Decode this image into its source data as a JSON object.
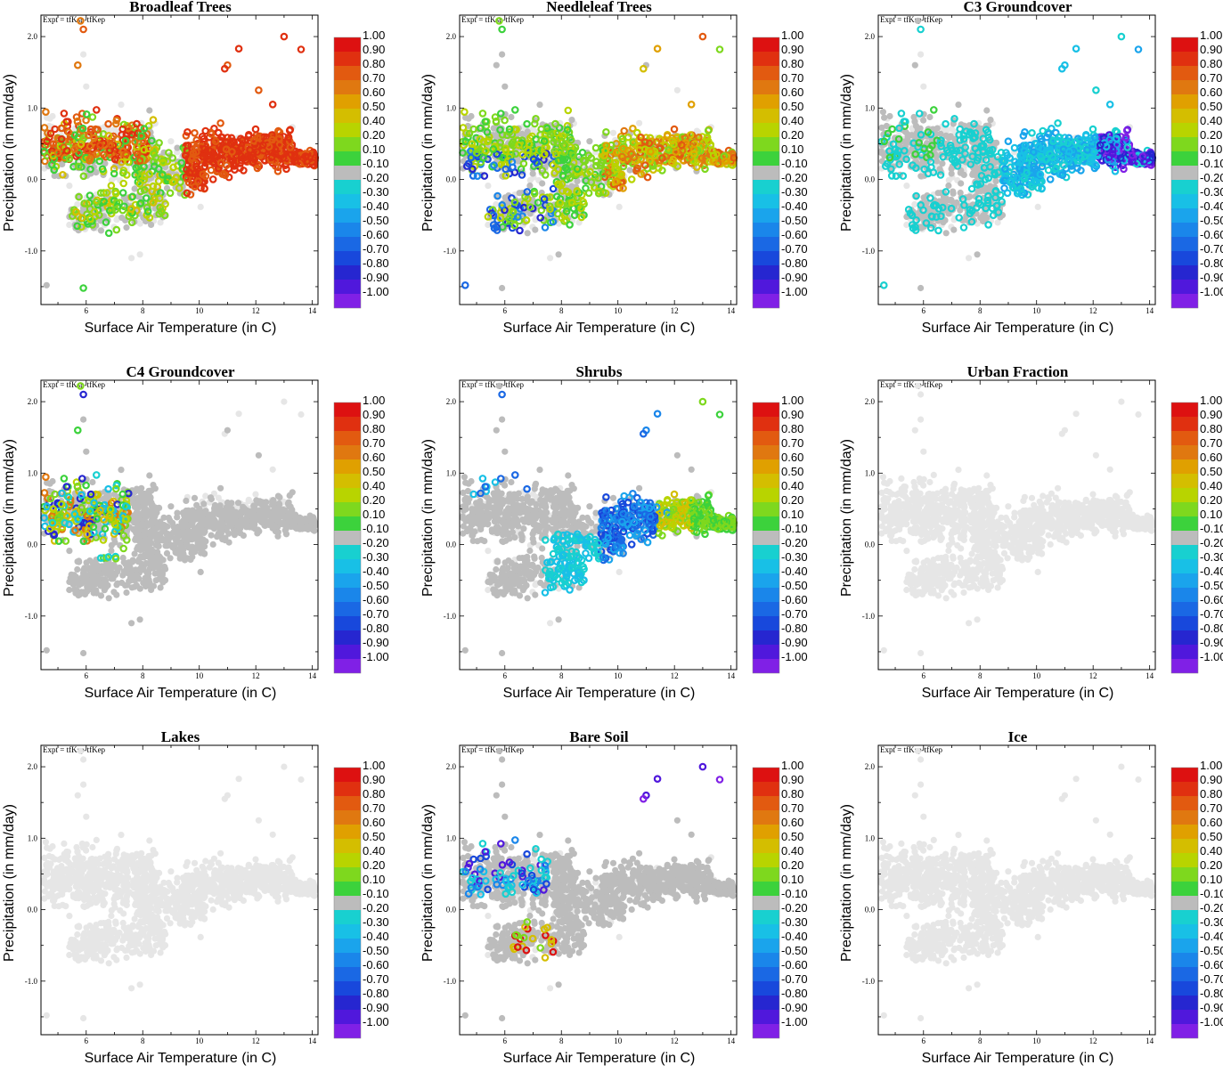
{
  "figure": {
    "expt_label": "Expt = tfKsp-tfKep",
    "colorbar": {
      "labels": [
        "1.00",
        "0.90",
        "0.80",
        "0.70",
        "0.60",
        "0.50",
        "0.40",
        "0.20",
        "0.10",
        "-0.10",
        "-0.20",
        "-0.30",
        "-0.40",
        "-0.50",
        "-0.60",
        "-0.70",
        "-0.80",
        "-0.90",
        "-1.00"
      ],
      "colors": [
        "#dd1111",
        "#e03010",
        "#e25a10",
        "#e07810",
        "#e0a000",
        "#d4be00",
        "#b8d400",
        "#7ed81e",
        "#3cd23c",
        "#bcbcbc",
        "#18d0d0",
        "#18c0e6",
        "#1aa4ec",
        "#1a86ea",
        "#1a68e4",
        "#1848dc",
        "#2626d0",
        "#5018dc",
        "#8020e6"
      ]
    }
  },
  "chart_data": [
    {
      "type": "scatter",
      "title": "Broadleaf Trees",
      "panel_state": "broadleaf",
      "xlabel": "Surface Air Temperature (in C)",
      "ylabel": "Precipitation (in mm/day)",
      "xlim": [
        4.4,
        14.2
      ],
      "ylim": [
        -1.75,
        2.3
      ],
      "xticks": [
        "6",
        "8",
        "10",
        "12",
        "14"
      ],
      "yticks": [
        "-1.0",
        "0.0",
        "1.0",
        "2.0"
      ]
    },
    {
      "type": "scatter",
      "title": "Needleleaf Trees",
      "panel_state": "needleleaf",
      "xlabel": "Surface Air Temperature (in C)",
      "ylabel": "Precipitation (in mm/day)",
      "xlim": [
        4.4,
        14.2
      ],
      "ylim": [
        -1.75,
        2.3
      ],
      "xticks": [
        "6",
        "8",
        "10",
        "12",
        "14"
      ],
      "yticks": [
        "-1.0",
        "0.0",
        "1.0",
        "2.0"
      ]
    },
    {
      "type": "scatter",
      "title": "C3 Groundcover",
      "panel_state": "c3",
      "xlabel": "Surface Air Temperature (in C)",
      "ylabel": "Precipitation (in mm/day)",
      "xlim": [
        4.4,
        14.2
      ],
      "ylim": [
        -1.75,
        2.3
      ],
      "xticks": [
        "6",
        "8",
        "10",
        "12",
        "14"
      ],
      "yticks": [
        "-1.0",
        "0.0",
        "1.0",
        "2.0"
      ]
    },
    {
      "type": "scatter",
      "title": "C4 Groundcover",
      "panel_state": "c4",
      "xlabel": "Surface Air Temperature (in C)",
      "ylabel": "Precipitation (in mm/day)",
      "xlim": [
        4.4,
        14.2
      ],
      "ylim": [
        -1.75,
        2.3
      ],
      "xticks": [
        "6",
        "8",
        "10",
        "12",
        "14"
      ],
      "yticks": [
        "-1.0",
        "0.0",
        "1.0",
        "2.0"
      ]
    },
    {
      "type": "scatter",
      "title": "Shrubs",
      "panel_state": "shrubs",
      "xlabel": "Surface Air Temperature (in C)",
      "ylabel": "Precipitation (in mm/day)",
      "xlim": [
        4.4,
        14.2
      ],
      "ylim": [
        -1.75,
        2.3
      ],
      "xticks": [
        "6",
        "8",
        "10",
        "12",
        "14"
      ],
      "yticks": [
        "-1.0",
        "0.0",
        "1.0",
        "2.0"
      ]
    },
    {
      "type": "scatter",
      "title": "Urban Fraction",
      "panel_state": "empty",
      "xlabel": "Surface Air Temperature (in C)",
      "ylabel": "Precipitation (in mm/day)",
      "xlim": [
        4.4,
        14.2
      ],
      "ylim": [
        -1.75,
        2.3
      ],
      "xticks": [
        "6",
        "8",
        "10",
        "12",
        "14"
      ],
      "yticks": [
        "-1.0",
        "0.0",
        "1.0",
        "2.0"
      ]
    },
    {
      "type": "scatter",
      "title": "Lakes",
      "panel_state": "empty",
      "xlabel": "Surface Air Temperature (in C)",
      "ylabel": "Precipitation (in mm/day)",
      "xlim": [
        4.4,
        14.2
      ],
      "ylim": [
        -1.75,
        2.3
      ],
      "xticks": [
        "6",
        "8",
        "10",
        "12",
        "14"
      ],
      "yticks": [
        "-1.0",
        "0.0",
        "1.0",
        "2.0"
      ]
    },
    {
      "type": "scatter",
      "title": "Bare Soil",
      "panel_state": "baresoil",
      "xlabel": "Surface Air Temperature (in C)",
      "ylabel": "Precipitation (in mm/day)",
      "xlim": [
        4.4,
        14.2
      ],
      "ylim": [
        -1.75,
        2.3
      ],
      "xticks": [
        "6",
        "8",
        "10",
        "12",
        "14"
      ],
      "yticks": [
        "-1.0",
        "0.0",
        "1.0",
        "2.0"
      ]
    },
    {
      "type": "scatter",
      "title": "Ice",
      "panel_state": "empty",
      "xlabel": "Surface Air Temperature (in C)",
      "ylabel": "Precipitation (in mm/day)",
      "xlim": [
        4.4,
        14.2
      ],
      "ylim": [
        -1.75,
        2.3
      ],
      "xticks": [
        "6",
        "8",
        "10",
        "12",
        "14"
      ],
      "yticks": [
        "-1.0",
        "0.0",
        "1.0",
        "2.0"
      ]
    }
  ]
}
